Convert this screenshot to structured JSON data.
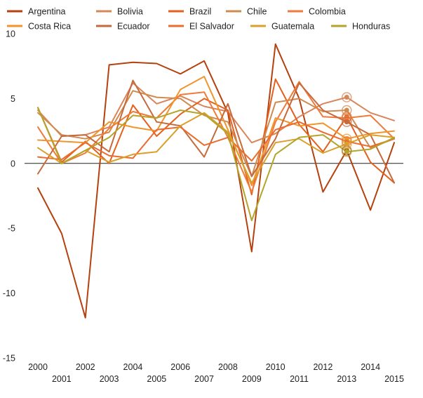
{
  "chart_data": {
    "type": "line",
    "title": "",
    "xlabel": "",
    "ylabel": "",
    "ylim": [
      -15,
      10
    ],
    "yticks": [
      10,
      5,
      0,
      -5,
      -10,
      -15
    ],
    "x": [
      2000,
      2001,
      2002,
      2003,
      2004,
      2005,
      2006,
      2007,
      2008,
      2009,
      2010,
      2011,
      2012,
      2013,
      2014,
      2015
    ],
    "x_tick_labels": [
      "2000",
      "2001",
      "2002",
      "2003",
      "2004",
      "2005",
      "2006",
      "2007",
      "2008",
      "2009",
      "2010",
      "2011",
      "2012",
      "2013",
      "2014",
      "2015"
    ],
    "grid": false,
    "zero_line": true,
    "legend_position": "top",
    "highlight_x": 2013,
    "series": [
      {
        "name": "Argentina",
        "color": "#b5410f",
        "values": [
          -1.9,
          -5.4,
          -11.9,
          7.6,
          7.8,
          7.7,
          6.9,
          7.9,
          3.9,
          -6.8,
          9.2,
          5.0,
          -2.2,
          1.0,
          -3.6,
          1.6
        ]
      },
      {
        "name": "Bolivia",
        "color": "#d9855a",
        "values": [
          4.1,
          2.1,
          2.2,
          2.8,
          6.2,
          4.6,
          5.2,
          4.4,
          4.0,
          1.6,
          2.3,
          3.6,
          4.6,
          5.1,
          3.9,
          3.3
        ]
      },
      {
        "name": "Brazil",
        "color": "#e3601f",
        "values": [
          4.3,
          0.1,
          1.7,
          0.0,
          4.5,
          2.1,
          3.8,
          5.0,
          4.1,
          -2.4,
          6.5,
          3.0,
          0.9,
          3.6,
          0.1,
          -1.5
        ]
      },
      {
        "name": "Chile",
        "color": "#cf8b4f",
        "values": [
          3.9,
          2.2,
          1.9,
          2.4,
          5.6,
          5.1,
          5.0,
          3.7,
          3.2,
          -1.0,
          4.7,
          5.0,
          4.0,
          4.1,
          1.2,
          1.9
        ]
      },
      {
        "name": "Colombia",
        "color": "#f07a3a",
        "values": [
          2.8,
          0.0,
          0.8,
          2.7,
          4.0,
          3.5,
          5.3,
          5.5,
          2.0,
          -2.2,
          3.2,
          6.3,
          3.6,
          3.5,
          3.7,
          1.9
        ]
      },
      {
        "name": "Costa Rica",
        "color": "#f0952c",
        "values": [
          1.8,
          1.7,
          1.6,
          3.2,
          2.8,
          2.5,
          5.7,
          6.7,
          2.6,
          -1.7,
          3.5,
          2.9,
          3.1,
          1.9,
          2.3,
          2.5
        ]
      },
      {
        "name": "Ecuador",
        "color": "#c56a3c",
        "values": [
          -0.8,
          2.1,
          2.2,
          0.9,
          6.4,
          3.2,
          2.9,
          0.5,
          4.6,
          -1.0,
          1.9,
          6.2,
          4.1,
          3.2,
          2.2,
          -1.5
        ]
      },
      {
        "name": "El Salvador",
        "color": "#ea6c2e",
        "values": [
          0.5,
          0.3,
          1.6,
          0.6,
          0.4,
          2.6,
          2.8,
          1.4,
          2.0,
          0.2,
          2.6,
          3.2,
          2.4,
          1.7,
          1.3,
          1.9
        ]
      },
      {
        "name": "Guatemala",
        "color": "#d9a02a",
        "values": [
          1.2,
          0.0,
          1.0,
          0.1,
          0.7,
          0.9,
          2.9,
          3.9,
          2.4,
          -1.5,
          1.6,
          1.9,
          0.8,
          1.5,
          2.2,
          2.0
        ]
      },
      {
        "name": "Honduras",
        "color": "#b3a52a",
        "values": [
          4.3,
          0.0,
          1.0,
          2.0,
          3.7,
          3.5,
          4.1,
          3.8,
          2.3,
          -4.4,
          0.7,
          2.0,
          2.2,
          0.9,
          1.1,
          2.0
        ]
      }
    ]
  }
}
